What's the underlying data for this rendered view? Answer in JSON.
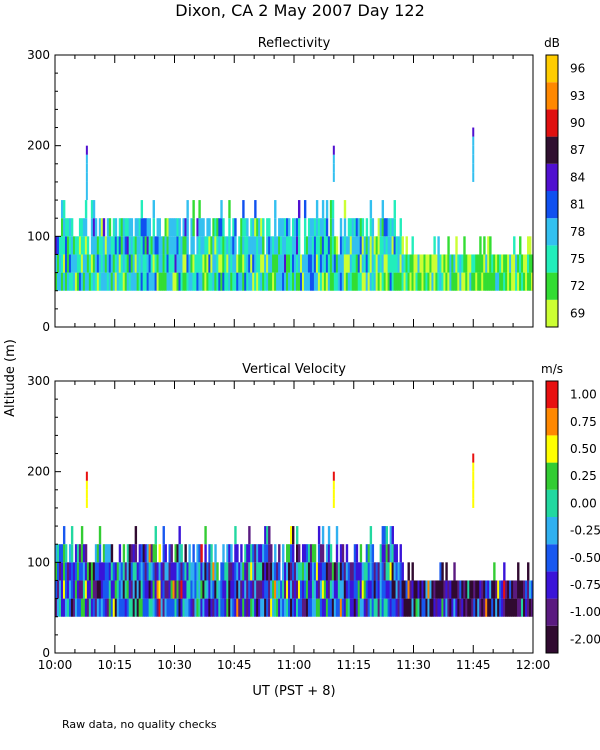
{
  "figure": {
    "title": "Dixon, CA  2 May 2007  Day 122",
    "y_label": "Altitude (m)",
    "x_label": "UT  (PST + 8)",
    "note": "Raw data, no quality checks"
  },
  "chart_data": [
    {
      "type": "heatmap",
      "title": "Reflectivity",
      "xlabel": "UT  (PST + 8)",
      "ylabel": "Altitude (m)",
      "xlim_minutes": [
        0,
        120
      ],
      "ylim": [
        0,
        300
      ],
      "x_tick_labels": [
        "10:00",
        "10:15",
        "10:30",
        "10:45",
        "11:00",
        "11:15",
        "11:30",
        "11:45",
        "12:00"
      ],
      "y_ticks": [
        0,
        100,
        200,
        300
      ],
      "colorbar": {
        "unit": "dB",
        "levels": [
          69,
          72,
          75,
          78,
          81,
          84,
          87,
          90,
          93,
          96
        ],
        "colors": [
          "#ccff33",
          "#33dd33",
          "#22eebb",
          "#33c0f0",
          "#1050f0",
          "#5010d0",
          "#301030",
          "#e01010",
          "#ff8800",
          "#ffcc00"
        ]
      },
      "data_summary": {
        "main_echo_altitude_range": [
          40,
          140
        ],
        "echo_top_decrease_after": "11:27",
        "late_top_altitude": 80,
        "isolated_echoes": [
          {
            "time": "10:08",
            "altitude_range": [
              140,
              200
            ]
          },
          {
            "time": "11:10",
            "altitude_range": [
              160,
              200
            ]
          },
          {
            "time": "11:45",
            "altitude_range": [
              160,
              220
            ]
          }
        ]
      }
    },
    {
      "type": "heatmap",
      "title": "Vertical Velocity",
      "xlabel": "UT  (PST + 8)",
      "ylabel": "Altitude (m)",
      "xlim_minutes": [
        0,
        120
      ],
      "ylim": [
        0,
        300
      ],
      "x_tick_labels": [
        "10:00",
        "10:15",
        "10:30",
        "10:45",
        "11:00",
        "11:15",
        "11:30",
        "11:45",
        "12:00"
      ],
      "y_ticks": [
        0,
        100,
        200,
        300
      ],
      "colorbar": {
        "unit": "m/s",
        "levels": [
          "-2.00",
          "-1.00",
          "-0.75",
          "-0.50",
          "-0.25",
          "0.00",
          "0.25",
          "0.50",
          "0.75",
          "1.00"
        ],
        "colors": [
          "#300a30",
          "#5a1a80",
          "#3a14d8",
          "#1858f0",
          "#30b0f0",
          "#22d8a0",
          "#33cc33",
          "#ffff00",
          "#ff8800",
          "#e81010"
        ]
      },
      "data_summary": {
        "main_echo_altitude_range": [
          40,
          140
        ],
        "dominant_values_after_11_30": "-2.00",
        "isolated_echoes": [
          {
            "time": "10:08",
            "altitude_range": [
              160,
              200
            ]
          },
          {
            "time": "11:10",
            "altitude_range": [
              160,
              200
            ]
          },
          {
            "time": "11:45",
            "altitude_range": [
              160,
              220
            ]
          }
        ]
      }
    }
  ]
}
